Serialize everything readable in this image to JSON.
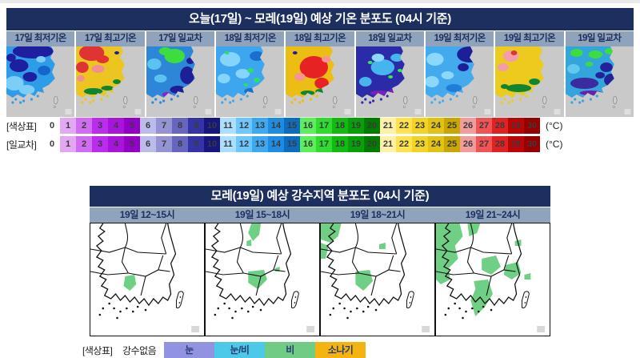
{
  "colors": {
    "header_bar": "#1d2f5e",
    "subheader_bg": "#8fa3bc",
    "sea_gray": "#c9c9c9",
    "rain_green": "#6fcf85"
  },
  "temp_section": {
    "title": "오늘(17일) ~ 모레(19일) 예상 기온 분포도 (04시 기준)",
    "panels": [
      {
        "label": "17일 최저기온",
        "base": "#2f9ce8",
        "blobs": [
          [
            34,
            6,
            26,
            9,
            "#1e1ea0"
          ],
          [
            16,
            24,
            12,
            8,
            "#1e1ea0"
          ],
          [
            30,
            38,
            9,
            6,
            "#1e1ea0"
          ],
          [
            6,
            14,
            6,
            5,
            "#1e1ea0"
          ],
          [
            10,
            46,
            12,
            9,
            "#7ccdf8"
          ],
          [
            26,
            54,
            10,
            6,
            "#7ccdf8"
          ],
          [
            44,
            16,
            6,
            4,
            "#7ccdf8"
          ],
          [
            48,
            30,
            8,
            6,
            "#1565cc"
          ]
        ]
      },
      {
        "label": "17일 최고기온",
        "base": "#ecc520",
        "blobs": [
          [
            20,
            8,
            16,
            10,
            "#e03434"
          ],
          [
            8,
            26,
            8,
            7,
            "#e03434"
          ],
          [
            34,
            16,
            8,
            5,
            "#e03434"
          ],
          [
            28,
            28,
            8,
            5,
            "#f29090"
          ],
          [
            6,
            40,
            5,
            4,
            "#f29090"
          ],
          [
            22,
            56,
            12,
            4,
            "#0d8531"
          ],
          [
            40,
            52,
            8,
            3,
            "#0d8531"
          ],
          [
            52,
            44,
            5,
            3,
            "#0d8531"
          ],
          [
            52,
            8,
            3,
            2,
            "#1e1ea0"
          ]
        ]
      },
      {
        "label": "17일 일교차",
        "base": "#2e86d8",
        "blobs": [
          [
            36,
            12,
            13,
            9,
            "#3ddd3d"
          ],
          [
            24,
            6,
            8,
            5,
            "#3ddd3d"
          ],
          [
            10,
            22,
            9,
            7,
            "#5cc2f0"
          ],
          [
            18,
            40,
            8,
            5,
            "#5cc2f0"
          ],
          [
            52,
            36,
            9,
            11,
            "#1e1e96"
          ],
          [
            40,
            54,
            10,
            5,
            "#1e1e96"
          ],
          [
            56,
            18,
            5,
            4,
            "#1e1e96"
          ],
          [
            26,
            60,
            6,
            3,
            "#8a22cc"
          ]
        ]
      },
      {
        "label": "18일 최저기온",
        "base": "#3da6ee",
        "blobs": [
          [
            18,
            16,
            13,
            9,
            "#84d4fc"
          ],
          [
            34,
            34,
            9,
            6,
            "#84d4fc"
          ],
          [
            10,
            40,
            8,
            6,
            "#84d4fc"
          ],
          [
            44,
            30,
            4,
            3,
            "#2ee062"
          ],
          [
            52,
            42,
            4,
            3,
            "#2ee062"
          ],
          [
            14,
            8,
            3,
            2,
            "#2ee062"
          ],
          [
            38,
            48,
            3,
            2,
            "#2ee062"
          ],
          [
            52,
            12,
            9,
            6,
            "#1a6ecc"
          ],
          [
            44,
            56,
            8,
            4,
            "#1a6ecc"
          ]
        ]
      },
      {
        "label": "18일 최고기온",
        "base": "#ecbe14",
        "blobs": [
          [
            36,
            26,
            18,
            14,
            "#e62222"
          ],
          [
            46,
            46,
            9,
            7,
            "#e62222"
          ],
          [
            18,
            38,
            7,
            5,
            "#f49494"
          ],
          [
            52,
            16,
            6,
            4,
            "#f49494"
          ],
          [
            28,
            58,
            9,
            3,
            "#0d8531"
          ],
          [
            44,
            56,
            6,
            3,
            "#0d8531"
          ],
          [
            12,
            8,
            3,
            2,
            "#1e1ea0"
          ]
        ]
      },
      {
        "label": "18일 일교차",
        "base": "#2b2baa",
        "blobs": [
          [
            34,
            26,
            15,
            10,
            "#46b4ee"
          ],
          [
            12,
            44,
            8,
            6,
            "#46b4ee"
          ],
          [
            52,
            14,
            8,
            5,
            "#46b4ee"
          ],
          [
            28,
            14,
            8,
            5,
            "#8ad8fc"
          ],
          [
            18,
            20,
            3,
            2,
            "#38e658"
          ],
          [
            44,
            38,
            3,
            2,
            "#38e658"
          ],
          [
            56,
            30,
            3,
            2,
            "#38e658"
          ],
          [
            30,
            58,
            12,
            3,
            "#7a1fb8"
          ],
          [
            48,
            56,
            6,
            3,
            "#7a1fb8"
          ]
        ]
      },
      {
        "label": "19일 최저기온",
        "base": "#44aaee",
        "blobs": [
          [
            56,
            10,
            16,
            10,
            "#1e1e96"
          ],
          [
            48,
            26,
            7,
            5,
            "#1e1e96"
          ],
          [
            12,
            16,
            11,
            8,
            "#8cd8fc"
          ],
          [
            8,
            44,
            9,
            7,
            "#8cd8fc"
          ],
          [
            28,
            36,
            8,
            5,
            "#8cd8fc"
          ],
          [
            36,
            52,
            10,
            5,
            "#1f7fd8"
          ]
        ]
      },
      {
        "label": "19일 최고기온",
        "base": "#ecca1e",
        "blobs": [
          [
            20,
            12,
            10,
            7,
            "#f49cac"
          ],
          [
            10,
            26,
            7,
            5,
            "#f49cac"
          ],
          [
            24,
            8,
            4,
            3,
            "#e0303c"
          ],
          [
            30,
            52,
            16,
            5,
            "#0d8531"
          ],
          [
            50,
            44,
            7,
            4,
            "#0d8531"
          ],
          [
            12,
            50,
            5,
            3,
            "#0d8531"
          ]
        ]
      },
      {
        "label": "19일 일교차",
        "base": "#34a4dc",
        "blobs": [
          [
            14,
            8,
            8,
            5,
            "#3ddd3d"
          ],
          [
            38,
            10,
            9,
            5,
            "#3ddd3d"
          ],
          [
            56,
            6,
            6,
            4,
            "#3ddd3d"
          ],
          [
            30,
            22,
            5,
            3,
            "#3ddd3d"
          ],
          [
            52,
            26,
            8,
            6,
            "#232399"
          ],
          [
            58,
            42,
            9,
            8,
            "#232399"
          ],
          [
            44,
            36,
            6,
            4,
            "#232399"
          ],
          [
            24,
            46,
            18,
            7,
            "#3a2ca0"
          ],
          [
            32,
            58,
            14,
            3,
            "#6e1fa8"
          ],
          [
            10,
            28,
            8,
            6,
            "#62c8f0"
          ]
        ]
      }
    ],
    "scale": {
      "values": [
        0,
        1,
        2,
        3,
        4,
        5,
        6,
        7,
        8,
        9,
        10,
        11,
        12,
        13,
        14,
        15,
        16,
        17,
        18,
        19,
        20,
        21,
        22,
        23,
        24,
        25,
        26,
        27,
        28,
        29,
        30
      ],
      "colors": [
        "#ffffff",
        "#e2a9f2",
        "#d06cf0",
        "#bc2cee",
        "#a814dc",
        "#9400c8",
        "#bcbcea",
        "#9494d2",
        "#6666c0",
        "#3434a6",
        "#16167e",
        "#aadfff",
        "#6ec6ff",
        "#3ea8f0",
        "#1e8ce0",
        "#0e6cc0",
        "#5cee5c",
        "#2edc2e",
        "#12ba12",
        "#08a008",
        "#007c00",
        "#fff2a8",
        "#ffe34e",
        "#f2d426",
        "#e2c214",
        "#c8a800",
        "#f29c9c",
        "#f05454",
        "#e02222",
        "#bc0404",
        "#980000"
      ]
    },
    "colorbars": [
      {
        "label": "[색상표]",
        "unit": "(°C)"
      },
      {
        "label": "[일교차]",
        "unit": "(°C)"
      }
    ]
  },
  "precip_section": {
    "title": "모레(19일) 예상 강수지역 분포도 (04시 기준)",
    "panels": [
      {
        "label": "19일 12~15시",
        "rain_areas": [
          [
            [
              44,
              66
            ],
            [
              56,
              64
            ],
            [
              58,
              76
            ],
            [
              50,
              84
            ],
            [
              42,
              78
            ]
          ]
        ]
      },
      {
        "label": "19일 15~18시",
        "rain_areas": [
          [
            [
              58,
              0
            ],
            [
              70,
              0
            ],
            [
              68,
              14
            ],
            [
              60,
              22
            ],
            [
              54,
              12
            ]
          ],
          [
            [
              52,
              22
            ],
            [
              58,
              20
            ],
            [
              58,
              28
            ],
            [
              52,
              28
            ]
          ],
          [
            [
              54,
              60
            ],
            [
              74,
              58
            ],
            [
              78,
              70
            ],
            [
              66,
              82
            ],
            [
              54,
              74
            ]
          ],
          [
            [
              88,
              56
            ],
            [
              94,
              54
            ],
            [
              94,
              60
            ],
            [
              88,
              60
            ]
          ]
        ]
      },
      {
        "label": "19일 18~21시",
        "rain_areas": [
          [
            [
              0,
              0
            ],
            [
              26,
              0
            ],
            [
              22,
              16
            ],
            [
              12,
              24
            ],
            [
              0,
              20
            ]
          ],
          [
            [
              0,
              24
            ],
            [
              10,
              28
            ],
            [
              6,
              44
            ],
            [
              0,
              44
            ]
          ],
          [
            [
              44,
              60
            ],
            [
              62,
              58
            ],
            [
              66,
              72
            ],
            [
              54,
              84
            ],
            [
              44,
              76
            ]
          ],
          [
            [
              74,
              26
            ],
            [
              82,
              24
            ],
            [
              82,
              32
            ],
            [
              74,
              32
            ]
          ]
        ]
      },
      {
        "label": "19일 21~24시",
        "rain_areas": [
          [
            [
              0,
              0
            ],
            [
              30,
              0
            ],
            [
              34,
              16
            ],
            [
              24,
              28
            ],
            [
              28,
              44
            ],
            [
              16,
              56
            ],
            [
              18,
              70
            ],
            [
              6,
              76
            ],
            [
              0,
              70
            ]
          ],
          [
            [
              40,
              0
            ],
            [
              56,
              0
            ],
            [
              52,
              12
            ],
            [
              42,
              16
            ]
          ],
          [
            [
              58,
              44
            ],
            [
              76,
              40
            ],
            [
              82,
              54
            ],
            [
              70,
              64
            ],
            [
              58,
              58
            ]
          ],
          [
            [
              88,
              52
            ],
            [
              104,
              48
            ],
            [
              108,
              62
            ],
            [
              96,
              70
            ],
            [
              86,
              64
            ]
          ],
          [
            [
              48,
              72
            ],
            [
              66,
              70
            ],
            [
              72,
              88
            ],
            [
              62,
              104
            ],
            [
              50,
              116
            ],
            [
              44,
              96
            ],
            [
              50,
              82
            ]
          ],
          [
            [
              100,
              22
            ],
            [
              108,
              20
            ],
            [
              108,
              28
            ],
            [
              100,
              28
            ]
          ],
          [
            [
              112,
              64
            ],
            [
              120,
              62
            ],
            [
              120,
              70
            ],
            [
              112,
              70
            ]
          ]
        ]
      }
    ],
    "legend": {
      "label": "[색상표]",
      "none_label": "강수없음",
      "items": [
        {
          "label": "눈",
          "color": "#9292e2"
        },
        {
          "label": "눈/비",
          "color": "#4cc8e8"
        },
        {
          "label": "비",
          "color": "#6ecc84"
        },
        {
          "label": "소나기",
          "color": "#f5b312"
        }
      ]
    }
  }
}
